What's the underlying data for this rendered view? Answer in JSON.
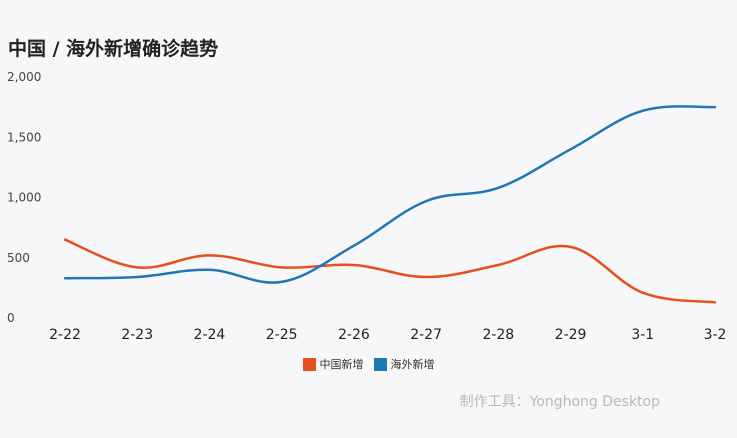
{
  "chart_data": {
    "type": "line",
    "title": "中国 / 海外新增确诊趋势",
    "xlabel": "",
    "ylabel": "",
    "categories": [
      "2-22",
      "2-23",
      "2-24",
      "2-25",
      "2-26",
      "2-27",
      "2-28",
      "2-29",
      "3-1",
      "3-2"
    ],
    "ylim": [
      0,
      2000
    ],
    "yticks": [
      0,
      500,
      1000,
      1500,
      2000
    ],
    "ytick_labels": [
      "0",
      "500",
      "1,000",
      "1,500",
      "2,000"
    ],
    "grid": false,
    "legend_position": "bottom",
    "smooth": true,
    "series": [
      {
        "name": "中国新增",
        "color": "#e4501e",
        "values": [
          650,
          420,
          520,
          420,
          440,
          340,
          440,
          590,
          210,
          130
        ]
      },
      {
        "name": "海外新增",
        "color": "#1f78b4",
        "values": [
          330,
          340,
          400,
          300,
          600,
          970,
          1080,
          1400,
          1720,
          1750
        ]
      }
    ]
  },
  "credit": "制作工具：Yonghong Desktop"
}
